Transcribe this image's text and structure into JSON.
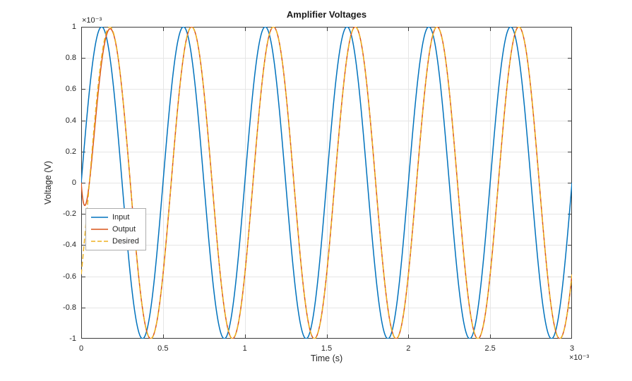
{
  "chart": {
    "x_exponent": "×10⁻³",
    "y_exponent": "×10⁻³"
  },
  "chart_data": {
    "type": "line",
    "title": "Amplifier Voltages",
    "xlabel": "Time (s)",
    "ylabel": "Voltage (V)",
    "xlim": [
      0,
      0.003
    ],
    "ylim": [
      -0.001,
      0.001
    ],
    "grid": true,
    "legend_position": "left-middle",
    "x_tick_values": [
      0,
      0.0005,
      0.001,
      0.0015,
      0.002,
      0.0025,
      0.003
    ],
    "x_tick_labels": [
      "0",
      "0.5",
      "1",
      "1.5",
      "2",
      "2.5",
      "3"
    ],
    "y_tick_values": [
      -0.001,
      -0.0008,
      -0.0006,
      -0.0004,
      -0.0002,
      0,
      0.0002,
      0.0004,
      0.0006,
      0.0008,
      0.001
    ],
    "y_tick_labels": [
      "-1",
      "-0.8",
      "-0.6",
      "-0.4",
      "-0.2",
      "0",
      "0.2",
      "0.4",
      "0.6",
      "0.8",
      "1"
    ],
    "series": [
      {
        "name": "Input",
        "color": "#0072BD",
        "style": "solid",
        "model": "sine",
        "amplitude": 0.001,
        "frequency_hz": 2000,
        "phase_deg": 0
      },
      {
        "name": "Output",
        "color": "#D95319",
        "style": "solid",
        "model": "sine-transient",
        "amplitude": 0.001,
        "frequency_hz": 2000,
        "phase_deg": -36,
        "transient_tau_s": 4e-05
      },
      {
        "name": "Desired",
        "color": "#EDB120",
        "style": "dashed",
        "model": "sine",
        "amplitude": 0.001,
        "frequency_hz": 2000,
        "phase_deg": -36
      }
    ]
  }
}
